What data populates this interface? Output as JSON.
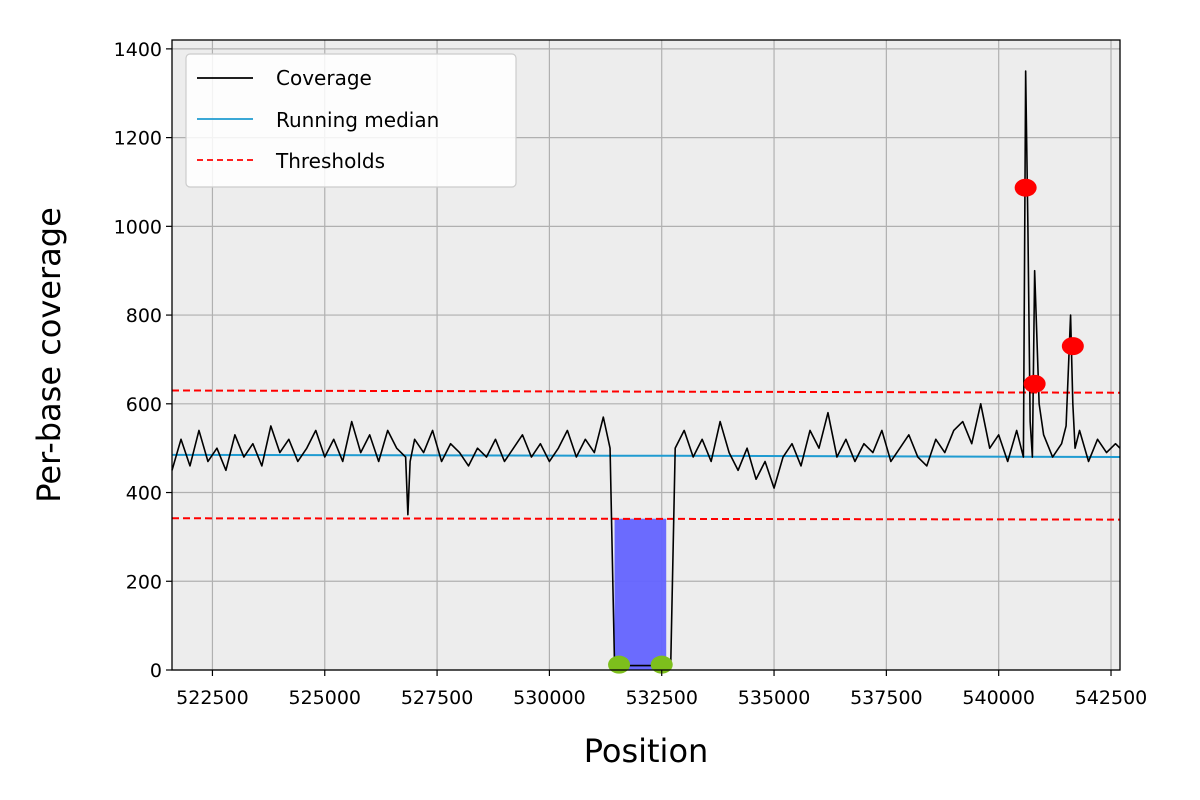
{
  "chart_data": {
    "type": "line",
    "xlabel": "Position",
    "ylabel": "Per-base coverage",
    "xlim": [
      521600,
      542700
    ],
    "ylim": [
      0,
      1420
    ],
    "xticks": [
      522500,
      525000,
      527500,
      530000,
      532500,
      535000,
      537500,
      540000,
      542500
    ],
    "xtick_labels": [
      "522500",
      "525000",
      "527500",
      "530000",
      "532500",
      "535000",
      "537500",
      "540000",
      "542500"
    ],
    "yticks": [
      0,
      200,
      400,
      600,
      800,
      1000,
      1200,
      1400
    ],
    "ytick_labels": [
      "0",
      "200",
      "400",
      "600",
      "800",
      "1000",
      "1200",
      "1400"
    ],
    "grid": true,
    "legend_position": "top-left",
    "background": "#ededed",
    "series": [
      {
        "name": "Coverage",
        "color": "#000000",
        "x": [
          521600,
          521800,
          522000,
          522200,
          522400,
          522600,
          522800,
          523000,
          523200,
          523400,
          523600,
          523800,
          524000,
          524200,
          524400,
          524600,
          524800,
          525000,
          525200,
          525400,
          525600,
          525800,
          526000,
          526200,
          526400,
          526600,
          526800,
          526850,
          526900,
          527000,
          527200,
          527400,
          527600,
          527800,
          528000,
          528200,
          528400,
          528600,
          528800,
          529000,
          529200,
          529400,
          529600,
          529800,
          530000,
          530200,
          530400,
          530600,
          530800,
          531000,
          531200,
          531350,
          531450,
          531600,
          531800,
          532000,
          532200,
          532400,
          532600,
          532700,
          532800,
          533000,
          533200,
          533400,
          533600,
          533800,
          534000,
          534200,
          534400,
          534600,
          534800,
          535000,
          535200,
          535400,
          535600,
          535800,
          536000,
          536200,
          536400,
          536600,
          536800,
          537000,
          537200,
          537400,
          537600,
          537800,
          538000,
          538200,
          538400,
          538600,
          538800,
          539000,
          539200,
          539400,
          539600,
          539800,
          540000,
          540200,
          540400,
          540550,
          540600,
          540650,
          540700,
          540750,
          540800,
          540900,
          541000,
          541200,
          541400,
          541500,
          541600,
          541650,
          541700,
          541800,
          542000,
          542200,
          542400,
          542600,
          542700
        ],
        "y": [
          450,
          520,
          460,
          540,
          470,
          500,
          450,
          530,
          480,
          510,
          460,
          550,
          490,
          520,
          470,
          500,
          540,
          480,
          520,
          470,
          560,
          490,
          530,
          470,
          540,
          500,
          480,
          350,
          470,
          520,
          490,
          540,
          470,
          510,
          490,
          460,
          500,
          480,
          520,
          470,
          500,
          530,
          480,
          510,
          470,
          500,
          540,
          480,
          520,
          490,
          570,
          500,
          10,
          10,
          10,
          10,
          10,
          10,
          10,
          10,
          500,
          540,
          480,
          520,
          470,
          560,
          490,
          450,
          500,
          430,
          470,
          410,
          480,
          510,
          460,
          540,
          500,
          580,
          480,
          520,
          470,
          510,
          490,
          540,
          470,
          500,
          530,
          480,
          460,
          520,
          490,
          540,
          560,
          510,
          600,
          500,
          530,
          470,
          540,
          480,
          1350,
          1000,
          560,
          480,
          900,
          600,
          530,
          480,
          510,
          550,
          800,
          600,
          500,
          540,
          470,
          520,
          490,
          510,
          500
        ]
      },
      {
        "name": "Running median",
        "color": "#1f9bd1",
        "x": [
          521600,
          531350,
          532700,
          542700
        ],
        "y": [
          485,
          483,
          483,
          480
        ]
      },
      {
        "name": "Thresholds",
        "color": "#ff0000",
        "style": "dashed",
        "x": [
          521600,
          530000,
          542700
        ],
        "y_upper": [
          630,
          628,
          625
        ],
        "y_lower": [
          342,
          341,
          339
        ]
      }
    ],
    "fill_region": {
      "x_start": 531450,
      "x_end": 532600,
      "y_top": 341,
      "color": "#6464ff"
    },
    "low_points": [
      {
        "x": 531550,
        "y": 12,
        "color": "#7dbf1c"
      },
      {
        "x": 532500,
        "y": 12,
        "color": "#7dbf1c"
      }
    ],
    "high_points": [
      {
        "x": 540600,
        "y": 1087,
        "color": "#ff0000"
      },
      {
        "x": 540800,
        "y": 645,
        "color": "#ff0000"
      },
      {
        "x": 541650,
        "y": 730,
        "color": "#ff0000"
      }
    ]
  }
}
